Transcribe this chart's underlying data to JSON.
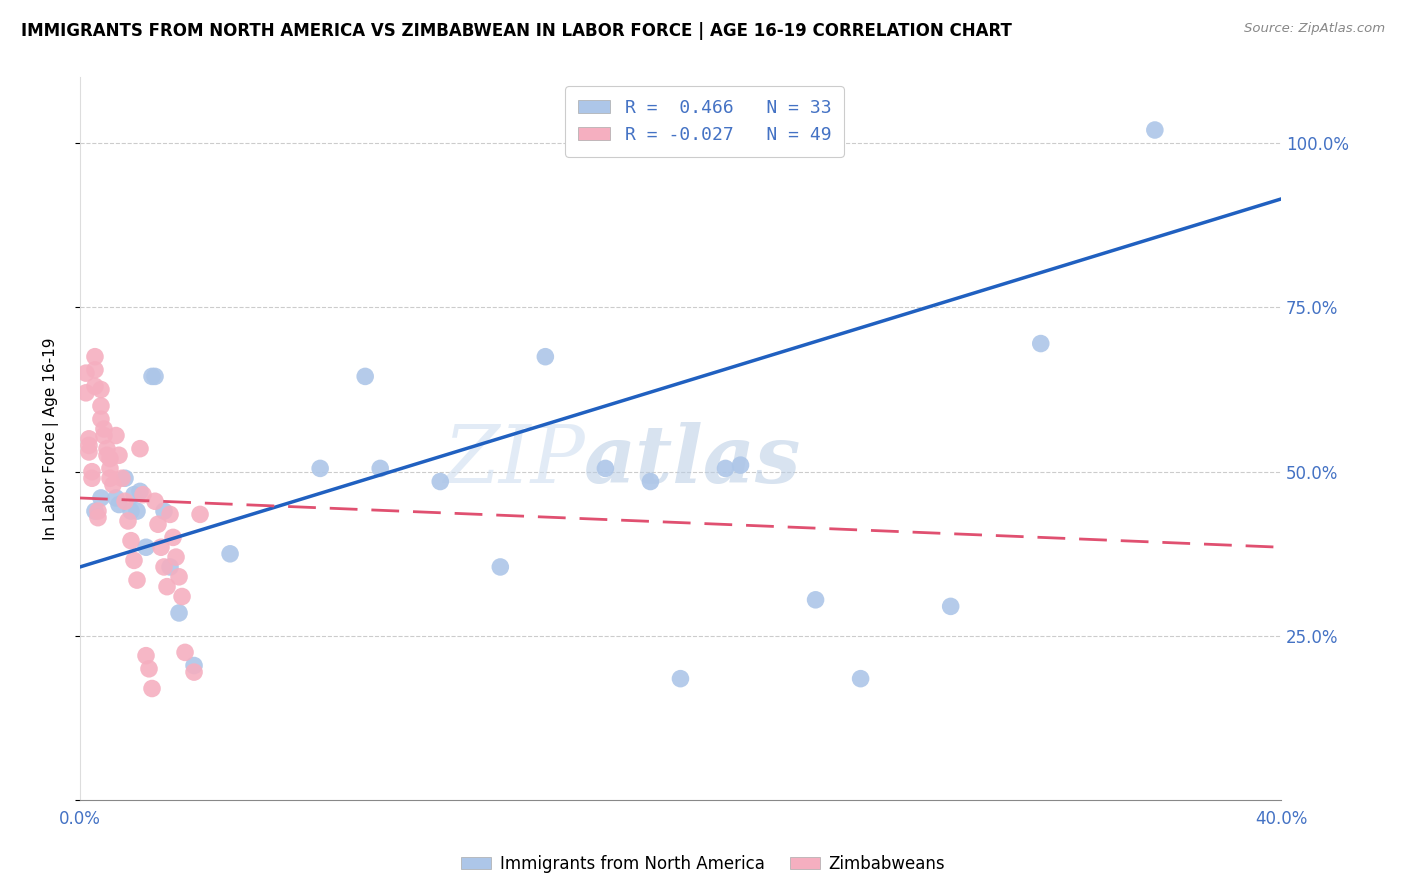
{
  "title": "IMMIGRANTS FROM NORTH AMERICA VS ZIMBABWEAN IN LABOR FORCE | AGE 16-19 CORRELATION CHART",
  "source": "Source: ZipAtlas.com",
  "ylabel": "In Labor Force | Age 16-19",
  "xlim": [
    0.0,
    0.4
  ],
  "ylim": [
    0.0,
    1.1
  ],
  "blue_r": 0.466,
  "blue_n": 33,
  "pink_r": -0.027,
  "pink_n": 49,
  "blue_color": "#adc6e8",
  "pink_color": "#f5afc0",
  "blue_line_color": "#2060c0",
  "pink_line_color": "#e05070",
  "watermark_zip": "ZIP",
  "watermark_atlas": "atlas",
  "axis_tick_color": "#4472c4",
  "grid_color": "#cccccc",
  "title_fontsize": 12,
  "blue_scatter_x": [
    0.005,
    0.007,
    0.012,
    0.013,
    0.015,
    0.017,
    0.018,
    0.019,
    0.02,
    0.022,
    0.024,
    0.025,
    0.028,
    0.03,
    0.033,
    0.038,
    0.05,
    0.08,
    0.095,
    0.1,
    0.12,
    0.14,
    0.155,
    0.175,
    0.19,
    0.2,
    0.215,
    0.22,
    0.245,
    0.26,
    0.29,
    0.32,
    0.358
  ],
  "blue_scatter_y": [
    0.44,
    0.46,
    0.46,
    0.45,
    0.49,
    0.44,
    0.465,
    0.44,
    0.47,
    0.385,
    0.645,
    0.645,
    0.44,
    0.355,
    0.285,
    0.205,
    0.375,
    0.505,
    0.645,
    0.505,
    0.485,
    0.355,
    0.675,
    0.505,
    0.485,
    0.185,
    0.505,
    0.51,
    0.305,
    0.185,
    0.295,
    0.695,
    1.02
  ],
  "pink_scatter_x": [
    0.002,
    0.002,
    0.003,
    0.003,
    0.003,
    0.004,
    0.004,
    0.005,
    0.005,
    0.005,
    0.006,
    0.006,
    0.007,
    0.007,
    0.007,
    0.008,
    0.008,
    0.009,
    0.009,
    0.01,
    0.01,
    0.01,
    0.011,
    0.012,
    0.013,
    0.014,
    0.015,
    0.016,
    0.017,
    0.018,
    0.019,
    0.02,
    0.021,
    0.022,
    0.023,
    0.024,
    0.025,
    0.026,
    0.027,
    0.028,
    0.029,
    0.03,
    0.031,
    0.032,
    0.033,
    0.034,
    0.035,
    0.038,
    0.04
  ],
  "pink_scatter_y": [
    0.65,
    0.62,
    0.55,
    0.54,
    0.53,
    0.5,
    0.49,
    0.675,
    0.655,
    0.63,
    0.44,
    0.43,
    0.625,
    0.6,
    0.58,
    0.565,
    0.555,
    0.535,
    0.525,
    0.52,
    0.505,
    0.49,
    0.48,
    0.555,
    0.525,
    0.49,
    0.455,
    0.425,
    0.395,
    0.365,
    0.335,
    0.535,
    0.465,
    0.22,
    0.2,
    0.17,
    0.455,
    0.42,
    0.385,
    0.355,
    0.325,
    0.435,
    0.4,
    0.37,
    0.34,
    0.31,
    0.225,
    0.195,
    0.435
  ],
  "blue_line_x0": 0.0,
  "blue_line_y0": 0.355,
  "blue_line_x1": 0.4,
  "blue_line_y1": 0.915,
  "pink_line_x0": 0.0,
  "pink_line_y0": 0.46,
  "pink_line_x1": 0.4,
  "pink_line_y1": 0.385
}
